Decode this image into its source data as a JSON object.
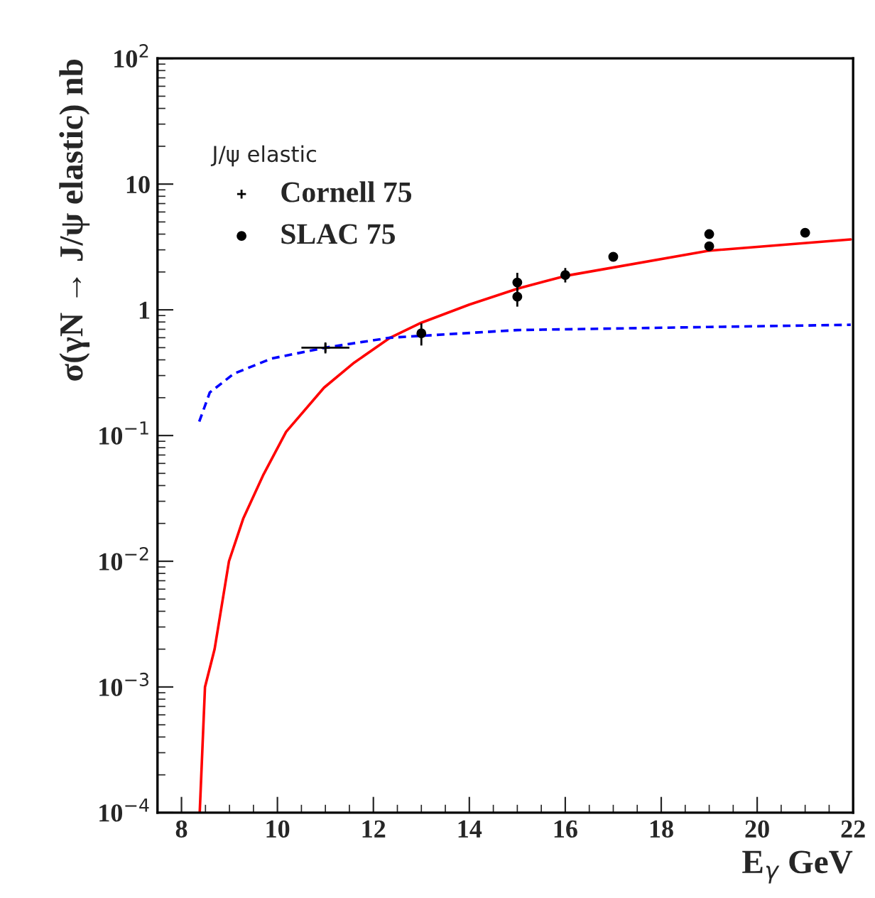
{
  "chart_data": {
    "type": "scatter",
    "xlabel": "E$_{γ}$ GeV",
    "ylabel": "σ(γN → J/ψ elastic) nb",
    "legend_title": "J/ψ elastic",
    "legend": "top left",
    "log": "y",
    "grid": false,
    "xlim": [
      7.5,
      22
    ],
    "xticks": [
      8,
      10,
      12,
      14,
      16,
      18,
      20,
      22
    ],
    "ylim": [
      0.0001,
      100
    ],
    "yticks": [
      {
        "value": 0.0001,
        "label": "10$^{−4}$"
      },
      {
        "value": 0.001,
        "label": "10$^{−3}$"
      },
      {
        "value": 0.01,
        "label": "10$^{−2}$"
      },
      {
        "value": 0.1,
        "label": "10$^{−1}$"
      },
      1,
      10,
      {
        "value": 100,
        "label": "10$^{2}$"
      }
    ],
    "series": [
      {
        "type": "line",
        "color": "#ff0000",
        "line_style": "solid",
        "x": [
          8.38,
          8.49,
          8.69,
          8.99,
          9.29,
          9.71,
          10.18,
          10.97,
          11.6,
          12.35,
          13.0,
          14.0,
          15.02,
          16.0,
          18.98,
          21.95
        ],
        "values": [
          0.0001,
          0.001,
          0.002,
          0.01,
          0.022,
          0.049,
          0.107,
          0.24,
          0.38,
          0.6,
          0.79,
          1.1,
          1.48,
          1.86,
          2.95,
          3.63
        ]
      },
      {
        "type": "line",
        "color": "#0000ff",
        "line_style": "dashed",
        "x": [
          8.37,
          8.59,
          9.09,
          9.88,
          11.0,
          12.35,
          15.0,
          18.98,
          21.95
        ],
        "values": [
          0.129,
          0.22,
          0.31,
          0.41,
          0.5,
          0.6,
          0.69,
          0.73,
          0.76
        ]
      },
      {
        "name": "Cornell 75",
        "color": "#000000",
        "marker": "cross",
        "x": [
          11.0
        ],
        "values": [
          0.5
        ],
        "errors": [
          0.05
        ],
        "xerrors": [
          0.5
        ]
      },
      {
        "name": "SLAC 75",
        "color": "#000000",
        "marker": "circle",
        "x": [
          13.0,
          15.0,
          15.0,
          16.0,
          17.0,
          19.0,
          19.0,
          21.0
        ],
        "values": [
          0.65,
          1.65,
          1.27,
          1.89,
          2.64,
          4.0,
          3.2,
          4.1
        ],
        "errors": [
          [
            0.52,
            0.78
          ],
          [
            1.4,
            1.97
          ],
          [
            1.06,
            1.5
          ],
          [
            1.65,
            2.15
          ],
          null,
          null,
          null,
          null
        ]
      }
    ]
  }
}
